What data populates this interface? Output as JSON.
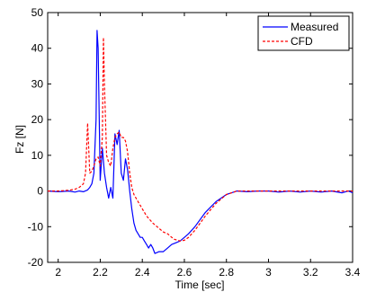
{
  "chart_data": {
    "type": "line",
    "title": "",
    "xlabel": "Time [sec]",
    "ylabel": "Fz [N]",
    "xlim": [
      1.95,
      3.4
    ],
    "ylim": [
      -20,
      50
    ],
    "xticks": [
      2,
      2.2,
      2.4,
      2.6,
      2.8,
      3,
      3.2,
      3.4
    ],
    "xtick_labels": [
      "2",
      "2.2",
      "2.4",
      "2.6",
      "2.8",
      "3",
      "3.2",
      "3.4"
    ],
    "yticks": [
      -20,
      -10,
      0,
      10,
      20,
      30,
      40,
      50
    ],
    "ytick_labels": [
      "-20",
      "-10",
      "0",
      "10",
      "20",
      "30",
      "40",
      "50"
    ],
    "grid": false,
    "legend": "top-right",
    "series": [
      {
        "name": "Measured",
        "color": "#0000ff",
        "style": "solid",
        "x": [
          1.95,
          2.0,
          2.05,
          2.08,
          2.1,
          2.12,
          2.14,
          2.15,
          2.16,
          2.17,
          2.18,
          2.185,
          2.19,
          2.2,
          2.21,
          2.22,
          2.23,
          2.24,
          2.25,
          2.26,
          2.27,
          2.28,
          2.29,
          2.3,
          2.31,
          2.32,
          2.33,
          2.34,
          2.35,
          2.36,
          2.37,
          2.38,
          2.39,
          2.4,
          2.41,
          2.42,
          2.43,
          2.44,
          2.45,
          2.46,
          2.48,
          2.5,
          2.52,
          2.54,
          2.56,
          2.58,
          2.6,
          2.62,
          2.65,
          2.7,
          2.75,
          2.8,
          2.85,
          2.9,
          2.95,
          3.0,
          3.05,
          3.1,
          3.15,
          3.2,
          3.25,
          3.3,
          3.35,
          3.38,
          3.4
        ],
        "y": [
          0,
          -0.2,
          0,
          -0.3,
          0,
          -0.2,
          0.3,
          1,
          2,
          5,
          20,
          45,
          40,
          3,
          12,
          5,
          1,
          -2,
          1,
          -2,
          16,
          13,
          17,
          5,
          3,
          9,
          6,
          0,
          -5,
          -9,
          -11,
          -12,
          -13,
          -13,
          -14,
          -15,
          -16,
          -15,
          -16,
          -17.5,
          -17,
          -17,
          -16,
          -15,
          -14.5,
          -14,
          -13,
          -12,
          -10,
          -6,
          -3,
          -1,
          0,
          -0.2,
          0,
          0,
          -0.3,
          0,
          -0.3,
          0,
          -0.3,
          0,
          -0.5,
          0,
          -0.5
        ]
      },
      {
        "name": "CFD",
        "color": "#ff0000",
        "style": "dashed",
        "x": [
          1.95,
          2.0,
          2.05,
          2.08,
          2.1,
          2.12,
          2.13,
          2.14,
          2.15,
          2.16,
          2.17,
          2.18,
          2.19,
          2.2,
          2.21,
          2.215,
          2.22,
          2.23,
          2.24,
          2.25,
          2.26,
          2.27,
          2.28,
          2.29,
          2.3,
          2.31,
          2.32,
          2.33,
          2.34,
          2.35,
          2.36,
          2.38,
          2.4,
          2.42,
          2.45,
          2.48,
          2.5,
          2.52,
          2.55,
          2.58,
          2.6,
          2.62,
          2.65,
          2.7,
          2.75,
          2.8,
          2.85,
          2.9,
          3.0,
          3.1,
          3.2,
          3.3,
          3.4
        ],
        "y": [
          0,
          0,
          0.2,
          0.5,
          1,
          2,
          5,
          19,
          5,
          5.5,
          7,
          9,
          9.5,
          7,
          15,
          43,
          30,
          10,
          8,
          7,
          12,
          15,
          16,
          16.5,
          15,
          15,
          14,
          11,
          5,
          1,
          -1,
          -3,
          -5,
          -7,
          -9,
          -10.5,
          -11.5,
          -12,
          -13.5,
          -14,
          -13.8,
          -13,
          -11,
          -7,
          -3.5,
          -1,
          0,
          0,
          0,
          0,
          0,
          0,
          0
        ]
      }
    ]
  }
}
